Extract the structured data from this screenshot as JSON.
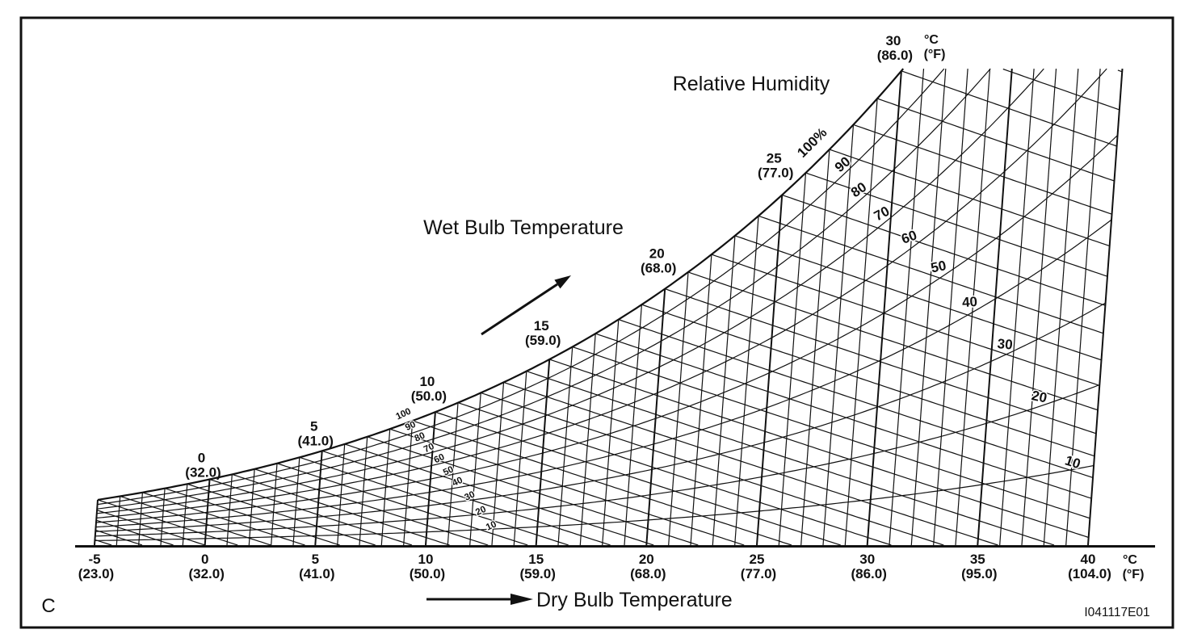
{
  "frame": {
    "corner_letter": "C",
    "figure_code": "I041117E01"
  },
  "chart_data": {
    "type": "psychrometric-diagram",
    "title_relative_humidity": "Relative Humidity",
    "wet_bulb_axis_label": "Wet Bulb Temperature",
    "dry_bulb_axis_label": "Dry Bulb Temperature",
    "units_celsius": "°C",
    "units_fahrenheit": "(°F)",
    "line_color": "#111111",
    "dry_bulb_axis": {
      "min_c": -5,
      "max_c": 40,
      "grid_interval_c": 1,
      "label_interval_c": 5,
      "ticks": [
        {
          "c": "-5",
          "f": "(23.0)"
        },
        {
          "c": "0",
          "f": "(32.0)"
        },
        {
          "c": "5",
          "f": "(41.0)"
        },
        {
          "c": "10",
          "f": "(50.0)"
        },
        {
          "c": "15",
          "f": "(59.0)"
        },
        {
          "c": "20",
          "f": "(68.0)"
        },
        {
          "c": "25",
          "f": "(77.0)"
        },
        {
          "c": "30",
          "f": "(86.0)"
        },
        {
          "c": "35",
          "f": "(95.0)"
        },
        {
          "c": "40",
          "f": "(104.0)"
        }
      ]
    },
    "wet_bulb_axis": {
      "grid_interval_c": 1,
      "labels": [
        {
          "c": "0",
          "f": "(32.0)"
        },
        {
          "c": "5",
          "f": "(41.0)"
        },
        {
          "c": "10",
          "f": "(50.0)"
        },
        {
          "c": "15",
          "f": "(59.0)"
        },
        {
          "c": "20",
          "f": "(68.0)"
        },
        {
          "c": "25",
          "f": "(77.0)"
        },
        {
          "c": "30",
          "f": "(86.0)"
        }
      ]
    },
    "relative_humidity": {
      "curve_values_percent": [
        10,
        20,
        30,
        40,
        50,
        60,
        70,
        80,
        90,
        100
      ],
      "label_values_percent": [
        100,
        90,
        80,
        70,
        60,
        50,
        40,
        30,
        20,
        10
      ],
      "outer_labels": [
        "100%",
        "90",
        "80",
        "70",
        "60",
        "50",
        "40",
        "30",
        "20",
        "10"
      ],
      "inner_labels": [
        "100",
        "90",
        "80",
        "70",
        "60",
        "50",
        "40",
        "30",
        "20",
        "10"
      ]
    }
  }
}
